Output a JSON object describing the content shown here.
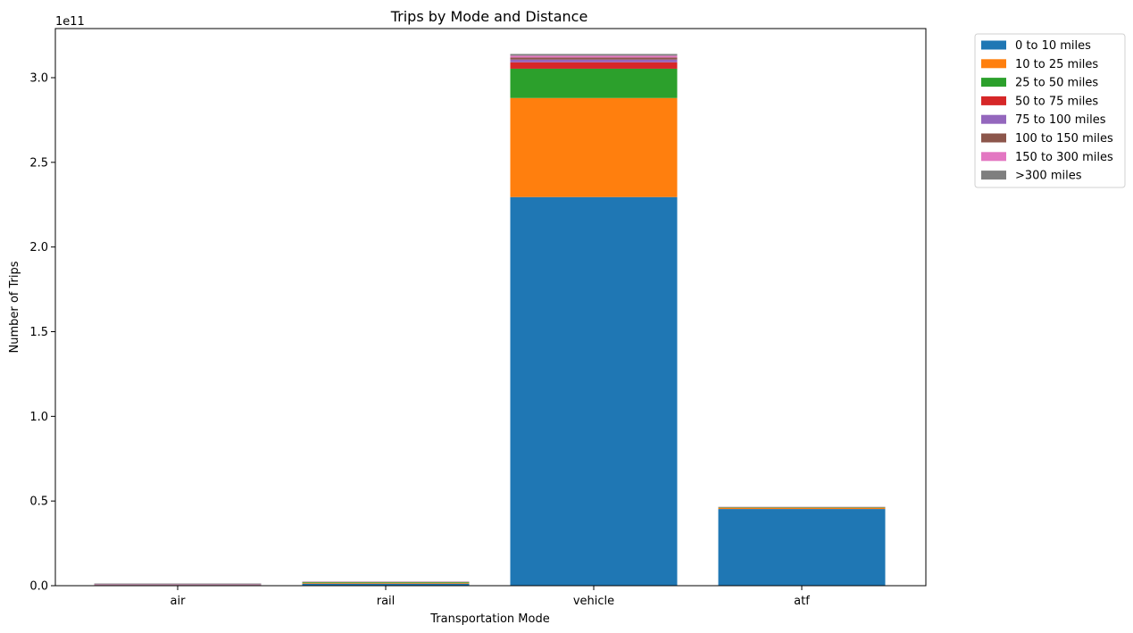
{
  "chart_data": {
    "type": "bar",
    "stacked": true,
    "title": "Trips by Mode and Distance",
    "xlabel": "Transportation Mode",
    "ylabel": "Number of Trips",
    "y_offset_label": "1e11",
    "y_scale": 100000000000,
    "ylim": [
      0,
      329000000000
    ],
    "yticks": [
      0,
      50000000000,
      100000000000,
      150000000000,
      200000000000,
      250000000000,
      300000000000
    ],
    "ytick_labels": [
      "0.0",
      "0.5",
      "1.0",
      "1.5",
      "2.0",
      "2.5",
      "3.0"
    ],
    "categories": [
      "air",
      "rail",
      "vehicle",
      "atf"
    ],
    "legend_position": "outside-top-right",
    "series": [
      {
        "name": "0 to 10 miles",
        "color": "#1f77b4",
        "values": [
          100000000,
          1200000000,
          229500000000,
          45300000000
        ]
      },
      {
        "name": "10 to 25 miles",
        "color": "#ff7f0e",
        "values": [
          100000000,
          500000000,
          58500000000,
          700000000
        ]
      },
      {
        "name": "25 to 50 miles",
        "color": "#2ca02c",
        "values": [
          100000000,
          400000000,
          17300000000,
          300000000
        ]
      },
      {
        "name": "50 to 75 miles",
        "color": "#d62728",
        "values": [
          100000000,
          100000000,
          3800000000,
          100000000
        ]
      },
      {
        "name": "75 to 100 miles",
        "color": "#9467bd",
        "values": [
          100000000,
          100000000,
          1600000000,
          50000000
        ]
      },
      {
        "name": "100 to 150 miles",
        "color": "#8c564b",
        "values": [
          100000000,
          50000000,
          1200000000,
          50000000
        ]
      },
      {
        "name": "150 to 300 miles",
        "color": "#e377c2",
        "values": [
          200000000,
          50000000,
          1100000000,
          50000000
        ]
      },
      {
        "name": ">300 miles",
        "color": "#7f7f7f",
        "values": [
          500000000,
          50000000,
          1000000000,
          50000000
        ]
      }
    ]
  }
}
